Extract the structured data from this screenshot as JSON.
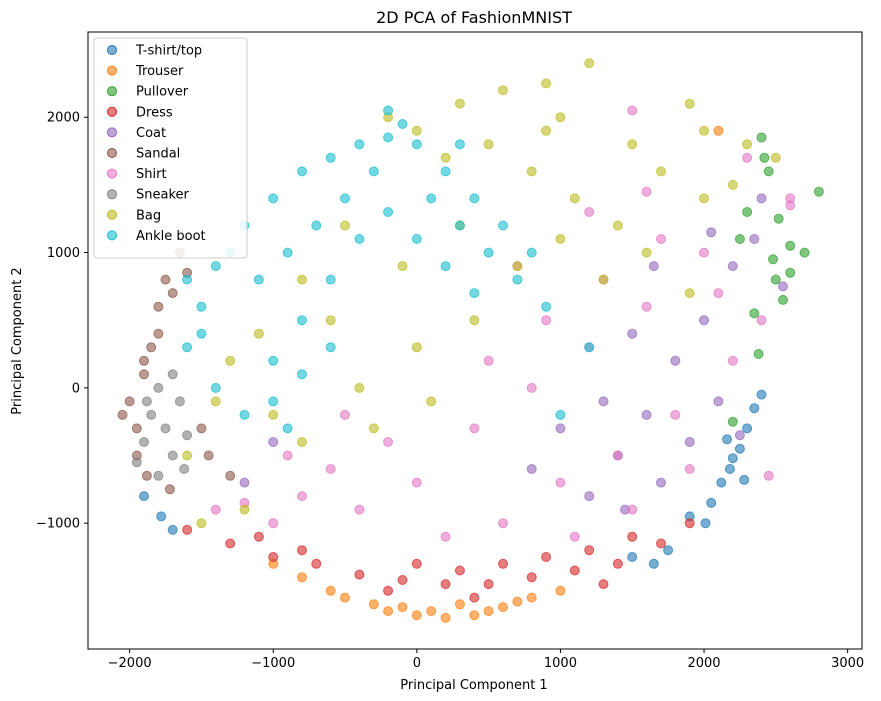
{
  "chart_data": {
    "type": "scatter",
    "title": "2D PCA of FashionMNIST",
    "xlabel": "Principal Component 1",
    "ylabel": "Principal Component 2",
    "xlim": [
      -2290,
      3100
    ],
    "ylim": [
      -1930,
      2630
    ],
    "xticks": [
      -2000,
      -1000,
      0,
      1000,
      2000,
      3000
    ],
    "xtick_labels": [
      "−2000",
      "−1000",
      "0",
      "1000",
      "2000",
      "3000"
    ],
    "yticks": [
      -1000,
      0,
      1000,
      2000
    ],
    "ytick_labels": [
      "−1000",
      "0",
      "1000",
      "2000"
    ],
    "grid": false,
    "legend_position": "top-left",
    "point_alpha": 0.6,
    "series": [
      {
        "name": "T-shirt/top",
        "color": "#1f77b4",
        "points": [
          [
            2180,
            -600
          ],
          [
            2250,
            -450
          ],
          [
            2120,
            -700
          ],
          [
            2300,
            -300
          ],
          [
            2050,
            -850
          ],
          [
            1900,
            -950
          ],
          [
            1750,
            -1200
          ],
          [
            2350,
            -150
          ],
          [
            2200,
            -520
          ],
          [
            1650,
            -1300
          ],
          [
            -1900,
            -800
          ],
          [
            -1780,
            -950
          ],
          [
            -1700,
            -1050
          ],
          [
            2280,
            -680
          ],
          [
            2010,
            -1000
          ],
          [
            2400,
            -50
          ],
          [
            1500,
            -1250
          ],
          [
            2160,
            -380
          ]
        ]
      },
      {
        "name": "Trouser",
        "color": "#ff7f0e",
        "points": [
          [
            -800,
            -1400
          ],
          [
            -500,
            -1550
          ],
          [
            -200,
            -1650
          ],
          [
            0,
            -1680
          ],
          [
            200,
            -1700
          ],
          [
            400,
            -1680
          ],
          [
            600,
            -1620
          ],
          [
            800,
            -1550
          ],
          [
            1000,
            -1500
          ],
          [
            -1000,
            -1300
          ],
          [
            -300,
            -1600
          ],
          [
            100,
            -1650
          ],
          [
            300,
            -1600
          ],
          [
            700,
            -1580
          ],
          [
            -600,
            -1500
          ],
          [
            2100,
            1900
          ],
          [
            -100,
            -1620
          ],
          [
            500,
            -1650
          ]
        ]
      },
      {
        "name": "Pullover",
        "color": "#2ca02c",
        "points": [
          [
            2800,
            1450
          ],
          [
            2600,
            1050
          ],
          [
            2500,
            800
          ],
          [
            2400,
            1850
          ],
          [
            2450,
            1600
          ],
          [
            2550,
            650
          ],
          [
            2300,
            1300
          ],
          [
            2380,
            250
          ],
          [
            2200,
            -250
          ],
          [
            2420,
            1700
          ],
          [
            2700,
            1000
          ],
          [
            2480,
            950
          ],
          [
            2350,
            550
          ],
          [
            2520,
            1250
          ],
          [
            2250,
            1100
          ],
          [
            2600,
            850
          ]
        ]
      },
      {
        "name": "Dress",
        "color": "#d62728",
        "points": [
          [
            -1600,
            -1050
          ],
          [
            -1300,
            -1150
          ],
          [
            -1000,
            -1250
          ],
          [
            -700,
            -1300
          ],
          [
            -400,
            -1380
          ],
          [
            -100,
            -1420
          ],
          [
            200,
            -1450
          ],
          [
            500,
            -1450
          ],
          [
            800,
            -1400
          ],
          [
            1100,
            -1350
          ],
          [
            1400,
            -1300
          ],
          [
            1700,
            -1150
          ],
          [
            1900,
            -1000
          ],
          [
            -800,
            -1200
          ],
          [
            0,
            -1300
          ],
          [
            300,
            -1350
          ],
          [
            600,
            -1300
          ],
          [
            900,
            -1250
          ],
          [
            1200,
            -1200
          ],
          [
            1500,
            -1100
          ],
          [
            -200,
            -1500
          ],
          [
            400,
            -1550
          ],
          [
            1300,
            -1450
          ],
          [
            -1100,
            -1100
          ]
        ]
      },
      {
        "name": "Coat",
        "color": "#9467bd",
        "points": [
          [
            1600,
            -200
          ],
          [
            1800,
            200
          ],
          [
            2000,
            500
          ],
          [
            1400,
            -500
          ],
          [
            1200,
            -800
          ],
          [
            2200,
            900
          ],
          [
            1700,
            -700
          ],
          [
            1000,
            -300
          ],
          [
            2100,
            -100
          ],
          [
            1900,
            -400
          ],
          [
            1500,
            400
          ],
          [
            2400,
            1400
          ],
          [
            2350,
            1100
          ],
          [
            1300,
            -100
          ],
          [
            800,
            -600
          ],
          [
            1650,
            900
          ],
          [
            2050,
            1150
          ],
          [
            2550,
            750
          ],
          [
            1450,
            -900
          ],
          [
            2250,
            -350
          ],
          [
            -1200,
            -700
          ],
          [
            -1000,
            -400
          ]
        ]
      },
      {
        "name": "Sandal",
        "color": "#8c564b",
        "points": [
          [
            -1950,
            -300
          ],
          [
            -2000,
            -100
          ],
          [
            -1900,
            100
          ],
          [
            -1850,
            300
          ],
          [
            -1800,
            600
          ],
          [
            -1750,
            800
          ],
          [
            -1650,
            1000
          ],
          [
            -1950,
            -500
          ],
          [
            -1880,
            -650
          ],
          [
            -1700,
            700
          ],
          [
            -1600,
            850
          ],
          [
            -1500,
            -300
          ],
          [
            -1450,
            -500
          ],
          [
            -1300,
            -650
          ],
          [
            -1800,
            400
          ],
          [
            -2050,
            -200
          ],
          [
            -1720,
            -750
          ],
          [
            -1900,
            200
          ]
        ]
      },
      {
        "name": "Shirt",
        "color": "#e377c2",
        "points": [
          [
            800,
            0
          ],
          [
            1200,
            300
          ],
          [
            1600,
            600
          ],
          [
            2000,
            1000
          ],
          [
            400,
            -300
          ],
          [
            0,
            -700
          ],
          [
            -400,
            -900
          ],
          [
            -800,
            -800
          ],
          [
            -1200,
            -850
          ],
          [
            1000,
            -700
          ],
          [
            1400,
            -500
          ],
          [
            1800,
            -200
          ],
          [
            2200,
            200
          ],
          [
            2400,
            500
          ],
          [
            2600,
            1400
          ],
          [
            1700,
            1100
          ],
          [
            1300,
            800
          ],
          [
            900,
            500
          ],
          [
            500,
            200
          ],
          [
            -200,
            -400
          ],
          [
            -600,
            -600
          ],
          [
            -1000,
            -1000
          ],
          [
            -1400,
            -900
          ],
          [
            200,
            -1100
          ],
          [
            600,
            -1000
          ],
          [
            1100,
            -1100
          ],
          [
            1500,
            -900
          ],
          [
            1900,
            -600
          ],
          [
            2100,
            700
          ],
          [
            1500,
            2050
          ],
          [
            2450,
            -650
          ],
          [
            2300,
            1700
          ],
          [
            -500,
            -200
          ],
          [
            -900,
            -500
          ],
          [
            1200,
            1300
          ],
          [
            1600,
            1450
          ],
          [
            700,
            900
          ],
          [
            2600,
            1350
          ]
        ]
      },
      {
        "name": "Sneaker",
        "color": "#7f7f7f",
        "points": [
          [
            -1900,
            -400
          ],
          [
            -1850,
            -200
          ],
          [
            -1800,
            0
          ],
          [
            -1750,
            -300
          ],
          [
            -1700,
            -500
          ],
          [
            -1650,
            -100
          ],
          [
            -1950,
            -550
          ],
          [
            -1800,
            -650
          ],
          [
            -1600,
            -350
          ],
          [
            -1700,
            100
          ],
          [
            -1880,
            -100
          ],
          [
            -1620,
            -600
          ]
        ]
      },
      {
        "name": "Bag",
        "color": "#bcbd22",
        "points": [
          [
            0,
            1900
          ],
          [
            300,
            2100
          ],
          [
            600,
            2200
          ],
          [
            900,
            2250
          ],
          [
            1200,
            2400
          ],
          [
            -200,
            2000
          ],
          [
            500,
            1800
          ],
          [
            800,
            1600
          ],
          [
            1100,
            1400
          ],
          [
            1400,
            1200
          ],
          [
            1700,
            1600
          ],
          [
            2000,
            1400
          ],
          [
            2300,
            1800
          ],
          [
            200,
            1700
          ],
          [
            -500,
            1200
          ],
          [
            -800,
            800
          ],
          [
            -1100,
            400
          ],
          [
            -1400,
            -100
          ],
          [
            -1600,
            -500
          ],
          [
            -1200,
            -900
          ],
          [
            -800,
            -400
          ],
          [
            -400,
            0
          ],
          [
            0,
            300
          ],
          [
            400,
            500
          ],
          [
            700,
            900
          ],
          [
            1000,
            1100
          ],
          [
            1300,
            800
          ],
          [
            1600,
            1000
          ],
          [
            1900,
            700
          ],
          [
            2200,
            1500
          ],
          [
            2500,
            1700
          ],
          [
            -300,
            -300
          ],
          [
            100,
            -100
          ],
          [
            -1000,
            -200
          ],
          [
            -1300,
            200
          ],
          [
            -600,
            500
          ],
          [
            900,
            1900
          ],
          [
            1500,
            1800
          ],
          [
            2000,
            1900
          ],
          [
            300,
            1200
          ],
          [
            -100,
            900
          ],
          [
            1900,
            2100
          ],
          [
            1000,
            2000
          ],
          [
            -1500,
            -1000
          ]
        ]
      },
      {
        "name": "Ankle boot",
        "color": "#17becf",
        "points": [
          [
            -1000,
            1400
          ],
          [
            -800,
            1600
          ],
          [
            -600,
            1700
          ],
          [
            -400,
            1800
          ],
          [
            -200,
            1850
          ],
          [
            0,
            1800
          ],
          [
            200,
            1600
          ],
          [
            400,
            1400
          ],
          [
            600,
            1200
          ],
          [
            800,
            1000
          ],
          [
            -1200,
            1200
          ],
          [
            -1400,
            900
          ],
          [
            -1500,
            600
          ],
          [
            -1600,
            300
          ],
          [
            -1400,
            0
          ],
          [
            -1200,
            -200
          ],
          [
            -1000,
            200
          ],
          [
            -800,
            500
          ],
          [
            -600,
            800
          ],
          [
            -400,
            1100
          ],
          [
            -200,
            1300
          ],
          [
            0,
            1100
          ],
          [
            200,
            900
          ],
          [
            400,
            700
          ],
          [
            -1300,
            1000
          ],
          [
            -1100,
            800
          ],
          [
            -900,
            1000
          ],
          [
            -700,
            1200
          ],
          [
            -500,
            1400
          ],
          [
            -300,
            1600
          ],
          [
            100,
            1400
          ],
          [
            300,
            1200
          ],
          [
            500,
            1000
          ],
          [
            700,
            800
          ],
          [
            -1500,
            400
          ],
          [
            -1000,
            -100
          ],
          [
            -800,
            100
          ],
          [
            -600,
            300
          ],
          [
            -200,
            2050
          ],
          [
            -100,
            1950
          ],
          [
            300,
            1800
          ],
          [
            -1600,
            800
          ],
          [
            900,
            600
          ],
          [
            1200,
            300
          ],
          [
            1000,
            -200
          ],
          [
            -900,
            -300
          ]
        ]
      }
    ]
  }
}
